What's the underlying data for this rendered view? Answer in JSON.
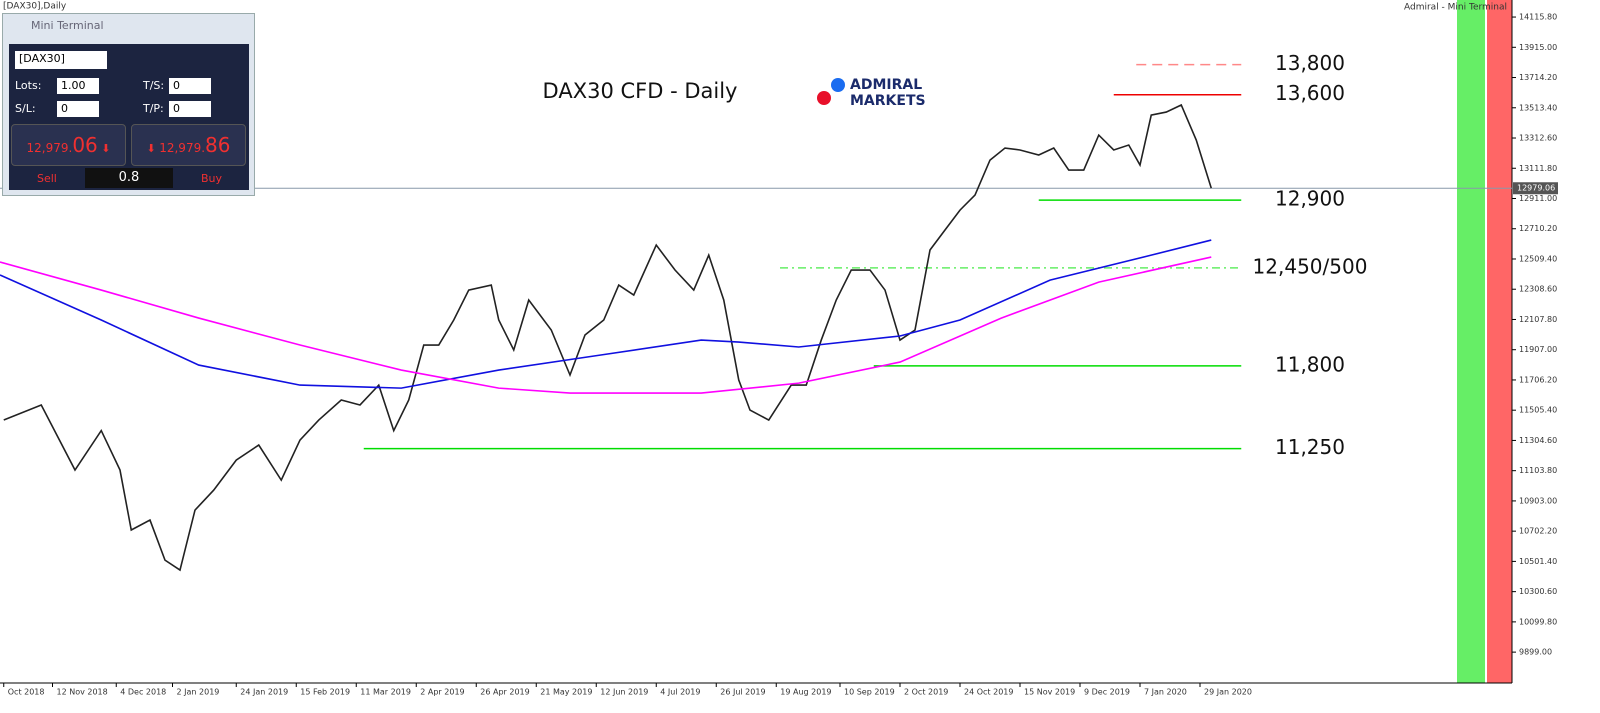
{
  "window": {
    "caption": "[DAX30],Daily",
    "tab": "Admiral - Mini Terminal"
  },
  "mini_terminal": {
    "title": "Mini Terminal",
    "symbol": "[DAX30]",
    "lots_label": "Lots:",
    "lots": "1.00",
    "ts_label": "T/S:",
    "ts": "0",
    "sl_label": "S/L:",
    "sl": "0",
    "tp_label": "T/P:",
    "tp": "0",
    "sell_price": {
      "main": "12,979.",
      "pips": "06"
    },
    "buy_price": {
      "main": "12,979.",
      "pips": "86"
    },
    "sell": "Sell",
    "spread": "0.8",
    "buy": "Buy"
  },
  "logo": {
    "line1": "ADMIRAL",
    "line2": "MARKETS"
  },
  "chart_data": {
    "type": "line",
    "title": "DAX30 CFD - Daily",
    "xlim": [
      0,
      388
    ],
    "ylim": [
      9694,
      14229
    ],
    "xticks": [
      {
        "value": 1,
        "label": "Oct 2018"
      },
      {
        "value": 14,
        "label": "12 Nov 2018"
      },
      {
        "value": 31,
        "label": "4 Dec 2018"
      },
      {
        "value": 46,
        "label": "2 Jan 2019"
      },
      {
        "value": 63,
        "label": "24 Jan 2019"
      },
      {
        "value": 79,
        "label": "15 Feb 2019"
      },
      {
        "value": 95,
        "label": "11 Mar 2019"
      },
      {
        "value": 111,
        "label": "2 Apr 2019"
      },
      {
        "value": 127,
        "label": "26 Apr 2019"
      },
      {
        "value": 143,
        "label": "21 May 2019"
      },
      {
        "value": 159,
        "label": "12 Jun 2019"
      },
      {
        "value": 175,
        "label": "4 Jul 2019"
      },
      {
        "value": 191,
        "label": "26 Jul 2019"
      },
      {
        "value": 207,
        "label": "19 Aug 2019"
      },
      {
        "value": 224,
        "label": "10 Sep 2019"
      },
      {
        "value": 240,
        "label": "2 Oct 2019"
      },
      {
        "value": 256,
        "label": "24 Oct 2019"
      },
      {
        "value": 272,
        "label": "15 Nov 2019"
      },
      {
        "value": 288,
        "label": "9 Dec 2019"
      },
      {
        "value": 304,
        "label": "7 Jan 2020"
      },
      {
        "value": 320,
        "label": "29 Jan 2020"
      }
    ],
    "yticks": [
      {
        "value": 14115.8,
        "label": "14115.80"
      },
      {
        "value": 13915,
        "label": "13915.00"
      },
      {
        "value": 13714.2,
        "label": "13714.20"
      },
      {
        "value": 13513.4,
        "label": "13513.40"
      },
      {
        "value": 13312.6,
        "label": "13312.60"
      },
      {
        "value": 13111.8,
        "label": "13111.80"
      },
      {
        "value": 12911,
        "label": "12911.00"
      },
      {
        "value": 12710.2,
        "label": "12710.20"
      },
      {
        "value": 12509.4,
        "label": "12509.40"
      },
      {
        "value": 12308.6,
        "label": "12308.60"
      },
      {
        "value": 12107.8,
        "label": "12107.80"
      },
      {
        "value": 11907,
        "label": "11907.00"
      },
      {
        "value": 11706.2,
        "label": "11706.20"
      },
      {
        "value": 11505.4,
        "label": "11505.40"
      },
      {
        "value": 11304.6,
        "label": "11304.60"
      },
      {
        "value": 11103.8,
        "label": "11103.80"
      },
      {
        "value": 10903,
        "label": "10903.00"
      },
      {
        "value": 10702.2,
        "label": "10702.20"
      },
      {
        "value": 10501.4,
        "label": "10501.40"
      },
      {
        "value": 10300.6,
        "label": "10300.60"
      },
      {
        "value": 10099.8,
        "label": "10099.80"
      },
      {
        "value": 9899,
        "label": "9899.00"
      }
    ],
    "series": [
      {
        "color": "#222222",
        "x": [
          1,
          11,
          20,
          27,
          32,
          35,
          40,
          44,
          48,
          52,
          57,
          63,
          69,
          75,
          80,
          85,
          91,
          96,
          101,
          105,
          109,
          113,
          117,
          121,
          125,
          131,
          133,
          137,
          141,
          147,
          152,
          156,
          161,
          165,
          169,
          175,
          180,
          185,
          189,
          193,
          197,
          200,
          205,
          211,
          215,
          219,
          223,
          227,
          232,
          236,
          240,
          244,
          248,
          252,
          256,
          260,
          264,
          268,
          272,
          277,
          281,
          285,
          289,
          293,
          297,
          301,
          304,
          307,
          311,
          315,
          319,
          323
        ],
        "values": [
          11440,
          11540,
          11108,
          11370,
          11108,
          10710,
          10776,
          10510,
          10444,
          10842,
          10975,
          11174,
          11274,
          11041,
          11307,
          11440,
          11573,
          11540,
          11672,
          11370,
          11573,
          11938,
          11938,
          12104,
          12303,
          12336,
          12104,
          11905,
          12237,
          12038,
          11739,
          12005,
          12104,
          12336,
          12270,
          12602,
          12436,
          12303,
          12535,
          12237,
          11706,
          11506,
          11440,
          11672,
          11672,
          11971,
          12237,
          12436,
          12436,
          12303,
          11971,
          12038,
          12569,
          12702,
          12834,
          12934,
          13166,
          13246,
          13233,
          13200,
          13246,
          13100,
          13100,
          13332,
          13233,
          13266,
          13133,
          13465,
          13485,
          13532,
          13299,
          12980
        ]
      },
      {
        "color": "#1010e0",
        "x": [
          0,
          27,
          53,
          80,
          107,
          133,
          160,
          187,
          197,
          213,
          240,
          256,
          280,
          307,
          323
        ],
        "values": [
          12403,
          12104,
          11805,
          11672,
          11652,
          11772,
          11871,
          11971,
          11958,
          11925,
          11998,
          12104,
          12369,
          12535,
          12635
        ]
      },
      {
        "color": "#ff00ff",
        "x": [
          0,
          27,
          53,
          80,
          107,
          133,
          152,
          187,
          213,
          240,
          267,
          293,
          323
        ],
        "values": [
          12489,
          12303,
          12117,
          11938,
          11772,
          11652,
          11619,
          11619,
          11685,
          11825,
          12117,
          12356,
          12522
        ]
      }
    ],
    "levels": [
      {
        "value": 13800,
        "label": "13,800",
        "from": 303,
        "to": 331,
        "color": "#ff8888",
        "dash": "10 6"
      },
      {
        "value": 13600,
        "label": "13,600",
        "from": 297,
        "to": 331,
        "color": "#ee0000",
        "dash": ""
      },
      {
        "value": 12900,
        "label": "12,900",
        "from": 277,
        "to": 331,
        "color": "#00dd00",
        "dash": ""
      },
      {
        "value": 12450,
        "label": "12,450/500",
        "from": 208,
        "to": 331,
        "color": "#66ee66",
        "dash": "8 4 2 4"
      },
      {
        "value": 11800,
        "label": "11,800",
        "from": 233,
        "to": 331,
        "color": "#00dd00",
        "dash": ""
      },
      {
        "value": 11250,
        "label": "11,250",
        "from": 97,
        "to": 331,
        "color": "#00dd00",
        "dash": ""
      }
    ],
    "current": {
      "value": 12979.06,
      "label": "12979.06"
    }
  }
}
